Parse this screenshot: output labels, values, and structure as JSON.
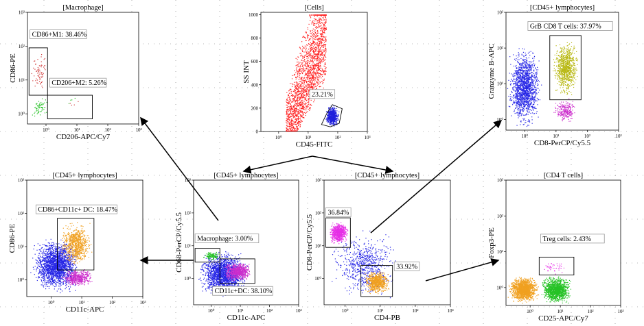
{
  "chart_data": [
    {
      "id": "macrophage",
      "type": "scatter",
      "title": "[Macrophage]",
      "xlabel": "CD206-APC/Cy7",
      "ylabel": "CD86-PE",
      "x_scale": "log",
      "y_scale": "log",
      "x_ticks": [
        "10⁰",
        "10¹",
        "10²",
        "10³"
      ],
      "y_ticks": [
        "10⁰",
        "10¹",
        "10²",
        "10³"
      ],
      "gates": [
        {
          "name": "CD86+M1",
          "percent": "38.46%"
        },
        {
          "name": "CD206+M2",
          "percent": "5.26%"
        }
      ],
      "series": [
        {
          "color": "#d03a3a",
          "count": 70,
          "x_log_range": [
            -0.5,
            0.05
          ],
          "y_log_range": [
            0.6,
            1.9
          ]
        },
        {
          "color": "#26c226",
          "count": 60,
          "x_log_range": [
            -0.5,
            0.05
          ],
          "y_log_range": [
            -0.15,
            0.55
          ]
        },
        {
          "color": "#d03a3a",
          "count": 4,
          "x_log_range": [
            0.3,
            1.2
          ],
          "y_log_range": [
            0.1,
            0.5
          ]
        },
        {
          "color": "#26c226",
          "count": 4,
          "x_log_range": [
            0.4,
            1.2
          ],
          "y_log_range": [
            0.2,
            0.6
          ]
        }
      ]
    },
    {
      "id": "cells",
      "type": "scatter",
      "title": "[Cells]",
      "xlabel": "CD45-FITC",
      "ylabel": "SS INT",
      "x_scale": "log",
      "y_scale": "linear",
      "x_ticks": [
        "10⁰",
        "10¹",
        "10²",
        "10³"
      ],
      "y_ticks": [
        "0",
        "200",
        "400",
        "600",
        "800",
        "1000"
      ],
      "gates": [
        {
          "name": "",
          "percent": "23.21%"
        }
      ],
      "series": [
        {
          "color": "#ff2020",
          "count": 2200,
          "x_log_range": [
            0.0,
            1.6
          ],
          "y_range": [
            0,
            1000
          ]
        },
        {
          "color": "#1e1edc",
          "count": 650,
          "x_log_range": [
            1.55,
            2.05
          ],
          "y_range": [
            40,
            230
          ]
        }
      ]
    },
    {
      "id": "cd8-lymph",
      "type": "scatter",
      "title": "[CD45+ lymphocytes]",
      "xlabel": "CD8-PerCP/Cy5.5",
      "ylabel": "Granzyme B-APC",
      "x_scale": "log",
      "y_scale": "log",
      "x_ticks": [
        "10⁰",
        "10¹",
        "10²",
        "10³"
      ],
      "y_ticks": [
        "10⁰",
        "10¹",
        "10²",
        "10³"
      ],
      "gates": [
        {
          "name": "GrB CD8 T cells",
          "percent": "37.97%"
        }
      ],
      "series": [
        {
          "color": "#2626e6",
          "count": 1600,
          "x_log_range": [
            -0.6,
            0.55
          ],
          "y_log_range": [
            -0.3,
            2.1
          ]
        },
        {
          "color": "#b8b812",
          "count": 900,
          "x_log_range": [
            0.85,
            1.75
          ],
          "y_log_range": [
            0.6,
            2.3
          ]
        },
        {
          "color": "#cc2ecc",
          "count": 250,
          "x_log_range": [
            0.85,
            1.7
          ],
          "y_log_range": [
            -0.1,
            0.6
          ]
        }
      ]
    },
    {
      "id": "dc",
      "type": "scatter",
      "title": "[CD45+ lymphocytes]",
      "xlabel": "CD11c-APC",
      "ylabel": "CD86-PE",
      "x_scale": "log",
      "y_scale": "log",
      "x_ticks": [
        "10⁰",
        "10¹",
        "10²",
        "10³"
      ],
      "y_ticks": [
        "10⁰",
        "10¹",
        "10²",
        "10³"
      ],
      "gates": [
        {
          "name": "CD86+CD11c+ DC",
          "percent": "18.47%"
        }
      ],
      "series": [
        {
          "color": "#2626e6",
          "count": 2200,
          "x_log_range": [
            -0.7,
            1.0
          ],
          "y_log_range": [
            -0.4,
            1.3
          ]
        },
        {
          "color": "#f0a020",
          "count": 800,
          "x_log_range": [
            0.25,
            1.35
          ],
          "y_log_range": [
            0.35,
            1.8
          ]
        },
        {
          "color": "#cc2ecc",
          "count": 500,
          "x_log_range": [
            0.3,
            1.4
          ],
          "y_log_range": [
            -0.2,
            0.35
          ]
        }
      ]
    },
    {
      "id": "cd68",
      "type": "scatter",
      "title": "[CD45+ lymphocytes]",
      "xlabel": "CD11c-APC",
      "ylabel": "CD68-PerCP/Cy5.5",
      "x_scale": "log",
      "y_scale": "log",
      "x_ticks": [
        "10⁰",
        "10¹",
        "10²",
        "10³"
      ],
      "y_ticks": [
        "10⁰",
        "10¹",
        "10²",
        "10³"
      ],
      "gates": [
        {
          "name": "Macrophage",
          "percent": "3.00%"
        },
        {
          "name": "CD11c+DC",
          "percent": "38.10%"
        }
      ],
      "series": [
        {
          "color": "#2626e6",
          "count": 1900,
          "x_log_range": [
            -0.5,
            1.3
          ],
          "y_log_range": [
            -0.6,
            0.9
          ]
        },
        {
          "color": "#cc2ecc",
          "count": 700,
          "x_log_range": [
            0.35,
            1.45
          ],
          "y_log_range": [
            -0.1,
            0.55
          ]
        },
        {
          "color": "#26c226",
          "count": 120,
          "x_log_range": [
            -0.3,
            0.3
          ],
          "y_log_range": [
            0.55,
            0.85
          ]
        }
      ]
    },
    {
      "id": "cd4cd8",
      "type": "scatter",
      "title": "[CD45+ lymphocytes]",
      "xlabel": "CD4-PB",
      "ylabel": "CD8-PerCP/Cy5.5",
      "x_scale": "log",
      "y_scale": "log",
      "x_ticks": [
        "10⁰",
        "10¹",
        "10²",
        "10³"
      ],
      "y_ticks": [
        "10⁰",
        "10¹",
        "10²",
        "10³"
      ],
      "gates": [
        {
          "name": "",
          "percent": "36.84%"
        },
        {
          "name": "",
          "percent": "33.92%"
        }
      ],
      "series": [
        {
          "color": "#2626e6",
          "count": 700,
          "x_log_range": [
            -0.5,
            1.6
          ],
          "y_log_range": [
            -0.7,
            1.6
          ]
        },
        {
          "color": "#e62ee6",
          "count": 700,
          "x_log_range": [
            -0.5,
            0.1
          ],
          "y_log_range": [
            1.05,
            1.75
          ]
        },
        {
          "color": "#f0a020",
          "count": 700,
          "x_log_range": [
            0.5,
            1.3
          ],
          "y_log_range": [
            -0.5,
            0.3
          ]
        }
      ]
    },
    {
      "id": "treg",
      "type": "scatter",
      "title": "[CD4 T cells]",
      "xlabel": "CD25-APC/Cy7",
      "ylabel": "Foxp3-PE",
      "x_scale": "log",
      "y_scale": "log",
      "x_ticks": [
        "10⁰",
        "10¹",
        "10²",
        "10³"
      ],
      "y_ticks": [
        "10⁰",
        "10¹",
        "10²",
        "10³"
      ],
      "gates": [
        {
          "name": "Treg cells",
          "percent": "2.43%"
        }
      ],
      "series": [
        {
          "color": "#f0a020",
          "count": 1500,
          "x_log_range": [
            -0.75,
            0.3
          ],
          "y_log_range": [
            -0.45,
            0.35
          ]
        },
        {
          "color": "#26c226",
          "count": 1300,
          "x_log_range": [
            0.3,
            1.4
          ],
          "y_log_range": [
            -0.45,
            0.35
          ]
        },
        {
          "color": "#e62ee6",
          "count": 40,
          "x_log_range": [
            0.3,
            1.3
          ],
          "y_log_range": [
            0.35,
            0.75
          ]
        }
      ]
    }
  ]
}
